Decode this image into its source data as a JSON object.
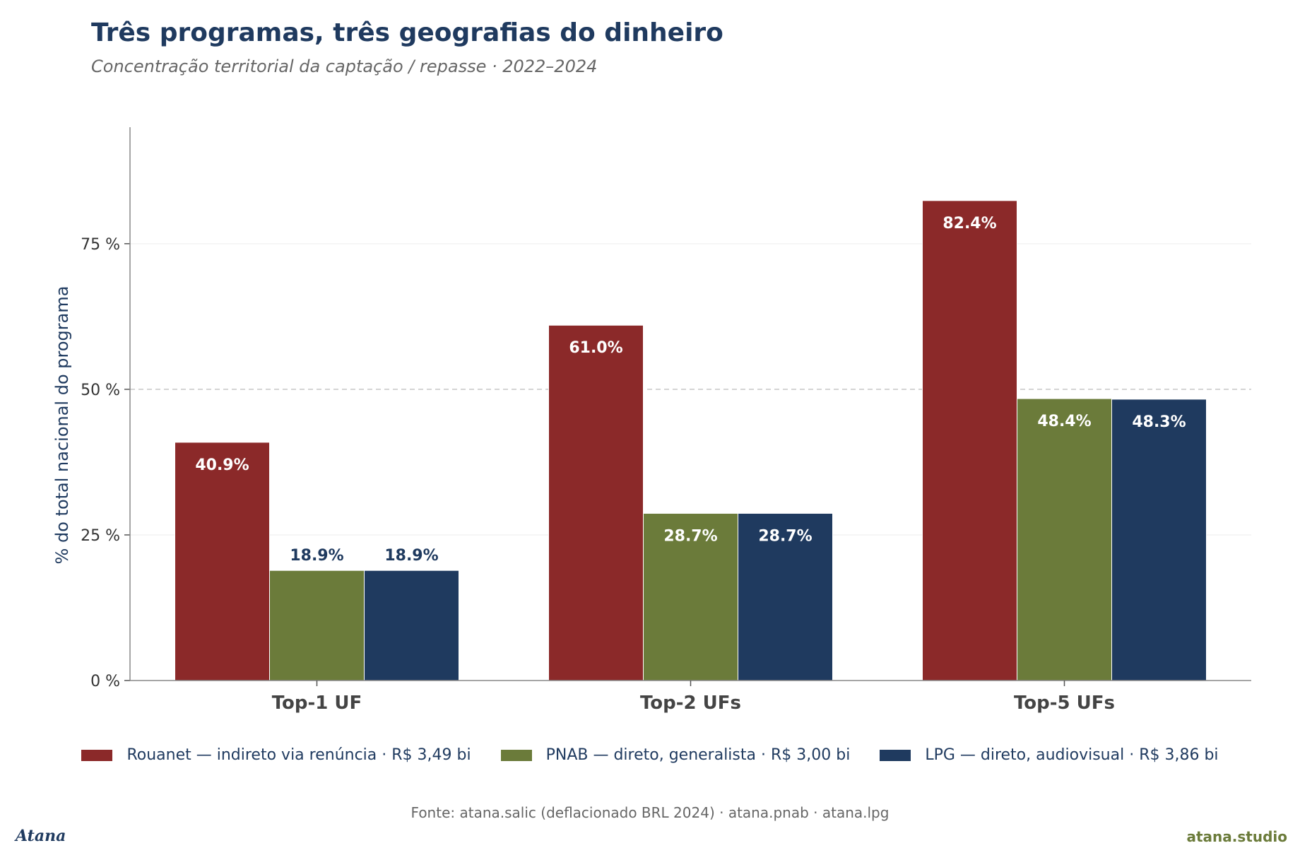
{
  "title": "Três programas, três geografias do dinheiro",
  "subtitle": "Concentração territorial da captação / repasse · 2022–2024",
  "source": "Fonte: atana.salic (deflacionado BRL 2024) · atana.pnab · atana.lpg",
  "brand_left": "Atana",
  "brand_right": "atana.studio",
  "chart_data": {
    "type": "bar",
    "ylabel": "% do total nacional do programa",
    "ylim": [
      0,
      95
    ],
    "yticks": [
      0,
      25,
      50,
      75
    ],
    "ytick_labels": [
      "0 %",
      "25 %",
      "50 %",
      "75 %"
    ],
    "reference_line": 50,
    "grid": true,
    "legend_position": "bottom",
    "categories": [
      "Top-1 UF",
      "Top-2 UFs",
      "Top-5 UFs"
    ],
    "series": [
      {
        "name": "Rouanet — indireto via renúncia · R$ 3,49 bi",
        "color": "#8b2929",
        "values": [
          40.9,
          61.0,
          82.4
        ],
        "labels": [
          "40.9%",
          "61.0%",
          "82.4%"
        ]
      },
      {
        "name": "PNAB — direto, generalista · R$ 3,00 bi",
        "color": "#6b7b3a",
        "values": [
          18.9,
          28.7,
          48.4
        ],
        "labels": [
          "18.9%",
          "28.7%",
          "48.4%"
        ]
      },
      {
        "name": "LPG — direto, audiovisual · R$ 3,86 bi",
        "color": "#1f3a5f",
        "values": [
          18.9,
          28.7,
          48.3
        ],
        "labels": [
          "18.9%",
          "28.7%",
          "48.3%"
        ]
      }
    ]
  }
}
